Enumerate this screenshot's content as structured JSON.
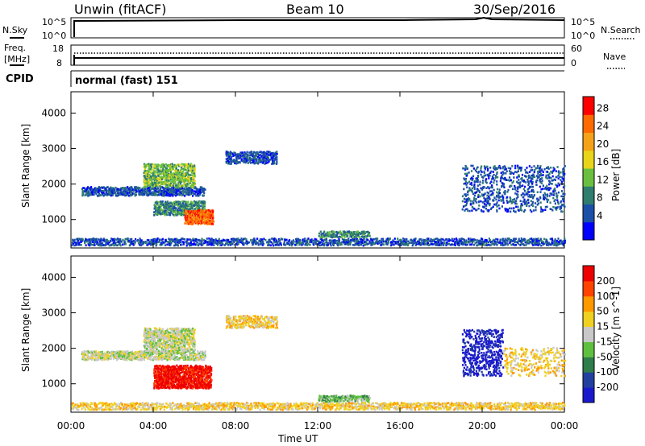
{
  "header": {
    "station": "Unwin (fitACF)",
    "beam": "Beam 10",
    "date": "30/Sep/2016"
  },
  "noise_panel": {
    "left_label": "N.Sky",
    "right_label": "N.Search",
    "left_ticks": [
      "10^5",
      "10^0"
    ],
    "right_ticks": [
      "10^5",
      "10^0"
    ]
  },
  "freq_panel": {
    "left_label_line1": "Freq.",
    "left_label_line2": "[MHz]",
    "right_label": "Nave",
    "left_ticks": [
      "18",
      "8"
    ],
    "right_ticks": [
      "60",
      "0"
    ]
  },
  "cpid_panel": {
    "label": "CPID",
    "value": "normal (fast) 151"
  },
  "x_axis": {
    "label": "Time UT",
    "ticks": [
      "00:00",
      "04:00",
      "08:00",
      "12:00",
      "16:00",
      "20:00",
      "00:00"
    ]
  },
  "chart_data": [
    {
      "type": "heatmap",
      "name": "power",
      "ylabel": "Slant Range [km]",
      "yticks": [
        1000,
        2000,
        3000,
        4000
      ],
      "ylim": [
        200,
        4600
      ],
      "xlim_hours": [
        0,
        24
      ],
      "colorbar_label": "Power [dB]",
      "colorbar_ticks": [
        "28",
        "24",
        "20",
        "16",
        "12",
        "8",
        "4"
      ],
      "colors": [
        "#0000ff",
        "#1b4fa8",
        "#2e7d6e",
        "#6abf40",
        "#e8d41a",
        "#f5a11a",
        "#ff6a00",
        "#ff0000"
      ],
      "regions": [
        {
          "t_start": 0.0,
          "t_end": 24.0,
          "r_start": 250,
          "r_end": 450,
          "density": 0.55,
          "level": 1
        },
        {
          "t_start": 0.5,
          "t_end": 6.5,
          "r_start": 1650,
          "r_end": 1900,
          "density": 0.6,
          "level": 1
        },
        {
          "t_start": 3.5,
          "t_end": 6.0,
          "r_start": 1900,
          "r_end": 2550,
          "density": 0.6,
          "level": 3
        },
        {
          "t_start": 4.0,
          "t_end": 6.5,
          "r_start": 1100,
          "r_end": 1500,
          "density": 0.6,
          "level": 2
        },
        {
          "t_start": 5.5,
          "t_end": 6.9,
          "r_start": 850,
          "r_end": 1250,
          "density": 0.85,
          "level": 6
        },
        {
          "t_start": 7.5,
          "t_end": 10.0,
          "r_start": 2550,
          "r_end": 2900,
          "density": 0.5,
          "level": 1
        },
        {
          "t_start": 12.0,
          "t_end": 14.5,
          "r_start": 480,
          "r_end": 650,
          "density": 0.6,
          "level": 2
        },
        {
          "t_start": 19.0,
          "t_end": 24.0,
          "r_start": 1200,
          "r_end": 2500,
          "density": 0.2,
          "level": 1
        }
      ]
    },
    {
      "type": "heatmap",
      "name": "velocity",
      "ylabel": "Slant Range [km]",
      "yticks": [
        1000,
        2000,
        3000,
        4000
      ],
      "ylim": [
        200,
        4600
      ],
      "xlim_hours": [
        0,
        24
      ],
      "colorbar_label": "Velocity [m s^-1]",
      "colorbar_ticks": [
        "200",
        "100",
        "50",
        "15",
        "-15",
        "-50",
        "-100",
        "-200"
      ],
      "colors": [
        "#1a1acc",
        "#2340a0",
        "#2e7d4a",
        "#5fc040",
        "#c8c8c8",
        "#f0d020",
        "#ff9900",
        "#ff4400",
        "#ee0000"
      ],
      "regions": [
        {
          "t_start": 0.0,
          "t_end": 24.0,
          "r_start": 250,
          "r_end": 450,
          "density": 0.55,
          "level": 5
        },
        {
          "t_start": 0.5,
          "t_end": 6.5,
          "r_start": 1650,
          "r_end": 1900,
          "density": 0.6,
          "level": 4
        },
        {
          "t_start": 3.5,
          "t_end": 6.0,
          "r_start": 1900,
          "r_end": 2550,
          "density": 0.6,
          "level": 4
        },
        {
          "t_start": 4.0,
          "t_end": 6.8,
          "r_start": 850,
          "r_end": 1500,
          "density": 0.75,
          "level": 8
        },
        {
          "t_start": 7.5,
          "t_end": 10.0,
          "r_start": 2550,
          "r_end": 2900,
          "density": 0.5,
          "level": 5
        },
        {
          "t_start": 12.0,
          "t_end": 14.5,
          "r_start": 480,
          "r_end": 650,
          "density": 0.6,
          "level": 3
        },
        {
          "t_start": 19.0,
          "t_end": 21.0,
          "r_start": 1200,
          "r_end": 2500,
          "density": 0.3,
          "level": 0
        },
        {
          "t_start": 21.0,
          "t_end": 24.0,
          "r_start": 1200,
          "r_end": 2000,
          "density": 0.2,
          "level": 5
        }
      ]
    }
  ]
}
